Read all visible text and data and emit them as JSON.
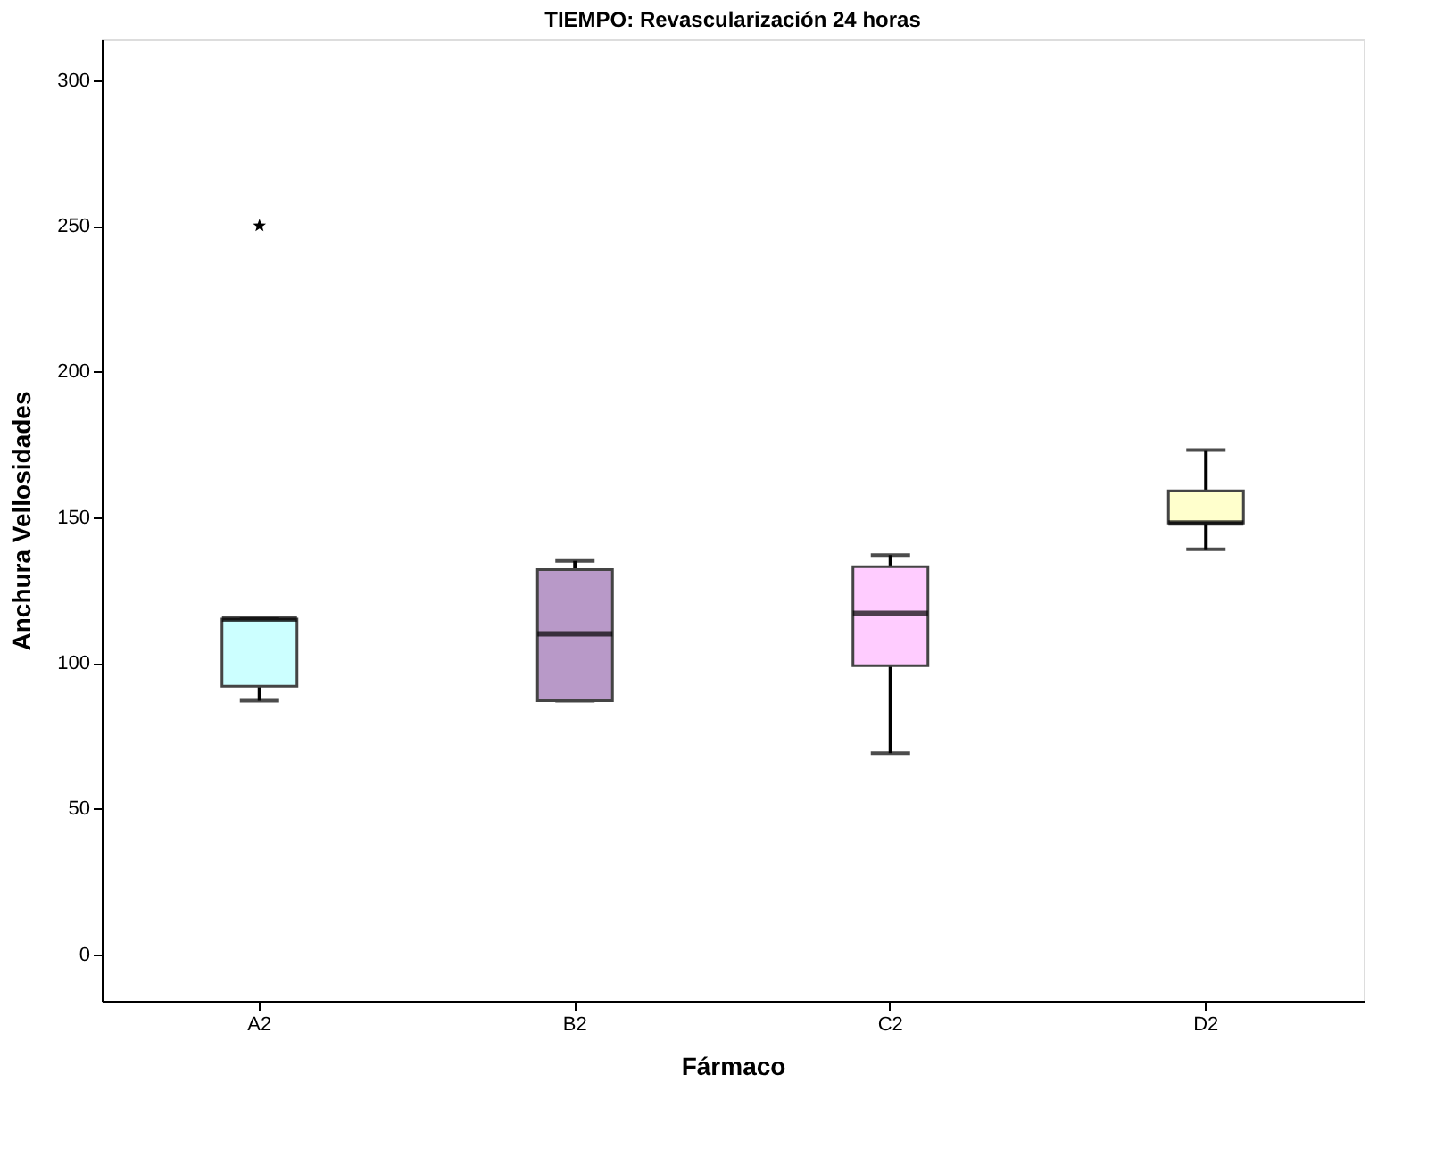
{
  "chart_data": {
    "type": "box",
    "title": "TIEMPO: Revascularización 24 horas",
    "xlabel": "Fármaco",
    "ylabel": "Anchura Vellosidades",
    "categories": [
      "A2",
      "B2",
      "C2",
      "D2"
    ],
    "colors": [
      "#ccffff",
      "#b899c8",
      "#ffccff",
      "#ffffcc"
    ],
    "boxes": [
      {
        "low": 87,
        "q1": 92,
        "median": 115,
        "q3": 115,
        "high": 115,
        "outliers": [
          250
        ]
      },
      {
        "low": 87,
        "q1": 87,
        "median": 110,
        "q3": 132,
        "high": 135
      },
      {
        "low": 69,
        "q1": 99,
        "median": 117,
        "q3": 133,
        "high": 137
      },
      {
        "low": 139,
        "q1": 148,
        "median": 148,
        "q3": 159,
        "high": 173
      }
    ],
    "ylim": [
      -16,
      314
    ],
    "yticks": [
      0,
      50,
      100,
      150,
      200,
      250,
      300
    ],
    "grid": false,
    "legend": false
  }
}
